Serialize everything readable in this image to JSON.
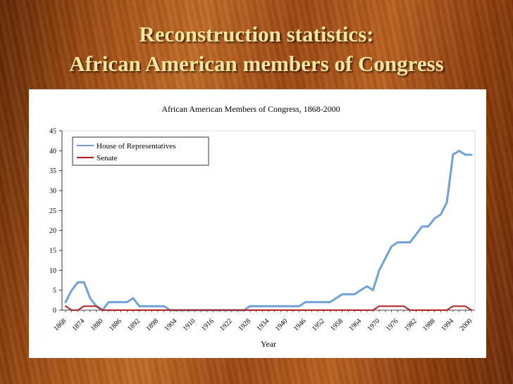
{
  "slide": {
    "title_line1": "Reconstruction statistics:",
    "title_line2": "African American members of Congress"
  },
  "chart_data": {
    "type": "line",
    "title": "African American Members of Congress, 1868-2000",
    "xlabel": "Year",
    "ylabel": "",
    "ylim": [
      0,
      45
    ],
    "yticks": [
      0,
      5,
      10,
      15,
      20,
      25,
      30,
      35,
      40,
      45
    ],
    "grid": false,
    "legend_position": "top-left",
    "x_tick_labels": [
      "1868",
      "1874",
      "1880",
      "1886",
      "1892",
      "1898",
      "1904",
      "1910",
      "1916",
      "1922",
      "1928",
      "1934",
      "1940",
      "1946",
      "1952",
      "1958",
      "1964",
      "1970",
      "1976",
      "1982",
      "1988",
      "1994",
      "2000"
    ],
    "x": [
      1868,
      1870,
      1872,
      1874,
      1876,
      1878,
      1880,
      1882,
      1884,
      1886,
      1888,
      1890,
      1892,
      1894,
      1896,
      1898,
      1900,
      1902,
      1904,
      1906,
      1908,
      1910,
      1912,
      1914,
      1916,
      1918,
      1920,
      1922,
      1924,
      1926,
      1928,
      1930,
      1932,
      1934,
      1936,
      1938,
      1940,
      1942,
      1944,
      1946,
      1948,
      1950,
      1952,
      1954,
      1956,
      1958,
      1960,
      1962,
      1964,
      1966,
      1968,
      1970,
      1972,
      1974,
      1976,
      1978,
      1980,
      1982,
      1984,
      1986,
      1988,
      1990,
      1992,
      1994,
      1996,
      1998,
      2000
    ],
    "series": [
      {
        "name": "House of Representatives",
        "color": "#6fa0d8",
        "values": [
          2,
          5,
          7,
          7,
          3,
          1,
          0,
          2,
          2,
          2,
          2,
          3,
          1,
          1,
          1,
          1,
          1,
          0,
          0,
          0,
          0,
          0,
          0,
          0,
          0,
          0,
          0,
          0,
          0,
          0,
          1,
          1,
          1,
          1,
          1,
          1,
          1,
          1,
          1,
          2,
          2,
          2,
          2,
          2,
          3,
          4,
          4,
          4,
          5,
          6,
          5,
          10,
          13,
          16,
          17,
          17,
          17,
          19,
          21,
          21,
          23,
          24,
          27,
          39,
          40,
          39,
          39
        ]
      },
      {
        "name": "Senate",
        "color": "#b02020",
        "values": [
          1,
          0,
          0,
          1,
          1,
          1,
          0,
          0,
          0,
          0,
          0,
          0,
          0,
          0,
          0,
          0,
          0,
          0,
          0,
          0,
          0,
          0,
          0,
          0,
          0,
          0,
          0,
          0,
          0,
          0,
          0,
          0,
          0,
          0,
          0,
          0,
          0,
          0,
          0,
          0,
          0,
          0,
          0,
          0,
          0,
          0,
          0,
          0,
          0,
          0,
          0,
          1,
          1,
          1,
          1,
          1,
          0,
          0,
          0,
          0,
          0,
          0,
          0,
          1,
          1,
          1,
          0
        ]
      }
    ]
  }
}
